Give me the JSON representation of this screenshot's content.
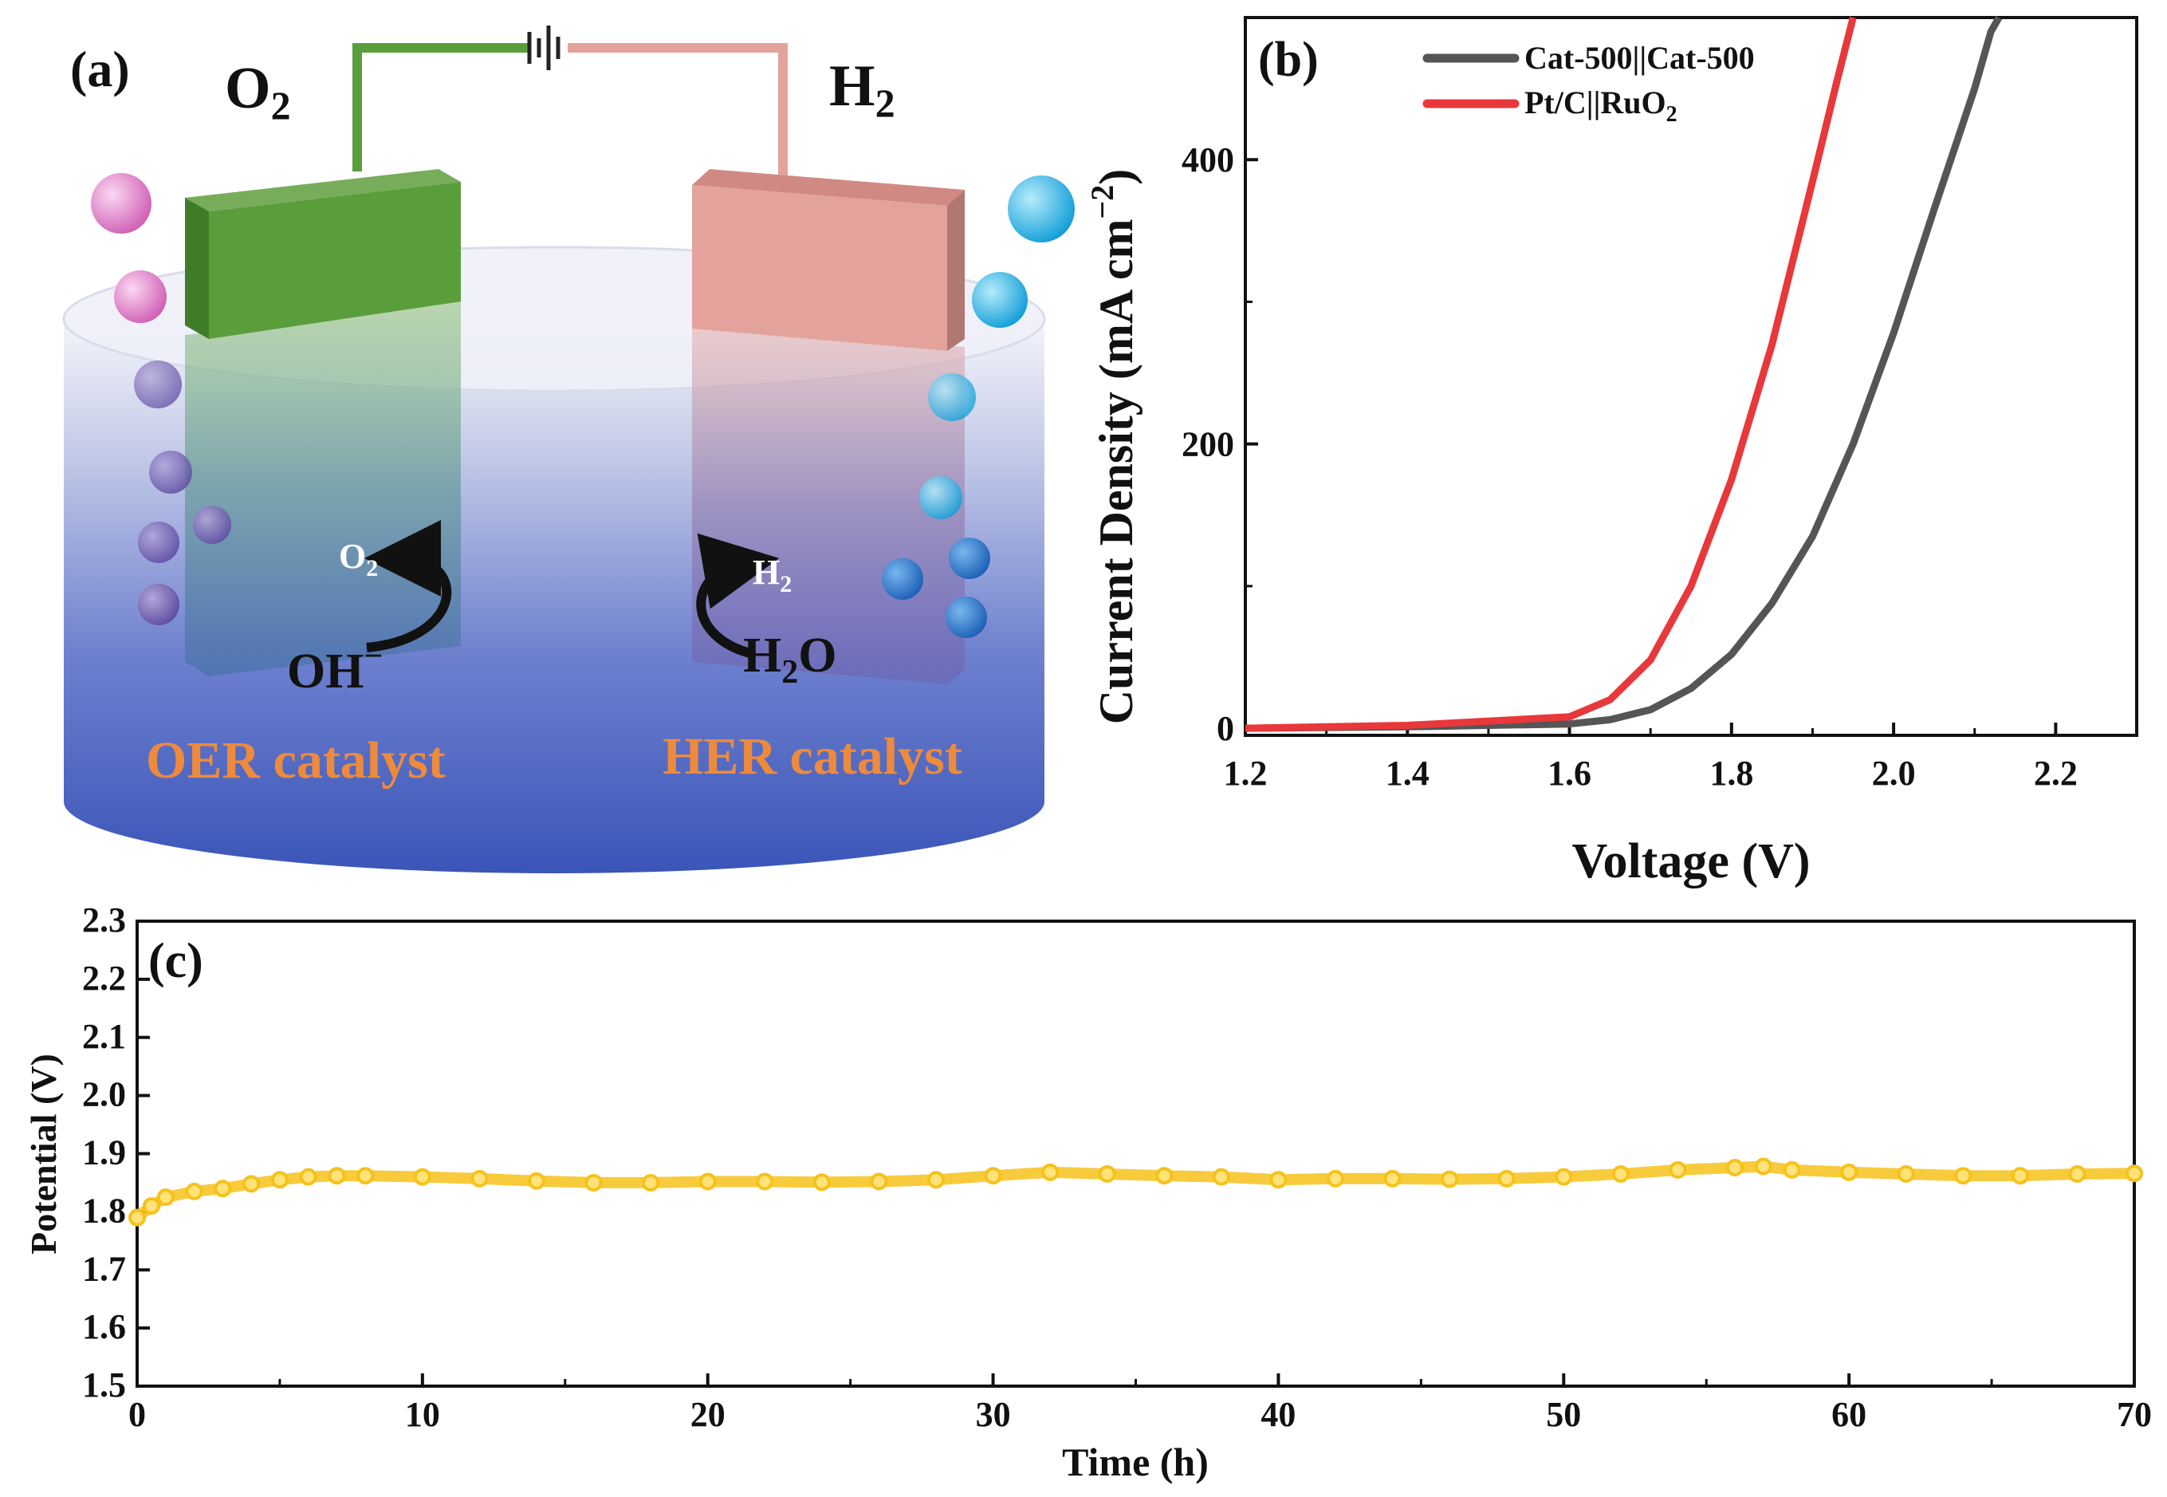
{
  "panel_a": {
    "label": "(a)",
    "o2_top": "O",
    "o2_top_sub": "2",
    "h2_top": "H",
    "h2_top_sub": "2",
    "o2_small": "O",
    "o2_small_sub": "2",
    "h2_small": "H",
    "h2_small_sub": "2",
    "oh": "OH",
    "oh_sup": "−",
    "h2o_h": "H",
    "h2o_sub": "2",
    "h2o_o": "O",
    "oer_label": "OER catalyst",
    "her_label": "HER catalyst",
    "colors": {
      "oer_electrode": "#5a9e3c",
      "her_electrode": "#e3a39c",
      "text_orange": "#ee8a3c",
      "o2_bubble": "#e27bc6",
      "h2_bubble": "#2fb3e6"
    }
  },
  "chart_data": [
    {
      "panel": "(b)",
      "type": "line",
      "xlabel": "Voltage (V)",
      "ylabel_main": "Current Density (mA cm",
      "ylabel_sup": "−2",
      "ylabel_close": ")",
      "xlim": [
        1.2,
        2.3
      ],
      "ylim": [
        -5,
        500
      ],
      "xticks": [
        1.2,
        1.4,
        1.6,
        1.8,
        2.0,
        2.2
      ],
      "xtick_labels": [
        "1.2",
        "1.4",
        "1.6",
        "1.8",
        "2.0",
        "2.2"
      ],
      "yticks": [
        0,
        200,
        400
      ],
      "ytick_labels": [
        "0",
        "200",
        "400"
      ],
      "legend_position": "top-left",
      "series": [
        {
          "name": "Cat-500||Cat-500",
          "color": "#555555",
          "x": [
            1.2,
            1.4,
            1.6,
            1.65,
            1.7,
            1.75,
            1.8,
            1.85,
            1.9,
            1.95,
            2.0,
            2.05,
            2.1,
            2.12,
            2.13
          ],
          "y": [
            0,
            1,
            3,
            6,
            13,
            28,
            52,
            88,
            135,
            200,
            278,
            365,
            450,
            490,
            500
          ]
        },
        {
          "name": "Pt/C||RuO",
          "name_sub": "2",
          "color": "#e8383b",
          "x": [
            1.2,
            1.4,
            1.6,
            1.65,
            1.7,
            1.75,
            1.8,
            1.85,
            1.9,
            1.93,
            1.95
          ],
          "y": [
            0,
            2,
            8,
            20,
            48,
            100,
            175,
            270,
            385,
            455,
            500
          ]
        }
      ]
    },
    {
      "panel": "(c)",
      "type": "scatter",
      "xlabel": "Time (h)",
      "ylabel": "Potential (V)",
      "xlim": [
        0,
        70
      ],
      "ylim": [
        1.5,
        2.3
      ],
      "xticks": [
        0,
        10,
        20,
        30,
        40,
        50,
        60,
        70
      ],
      "xtick_labels": [
        "0",
        "10",
        "20",
        "30",
        "40",
        "50",
        "60",
        "70"
      ],
      "yticks": [
        1.5,
        1.6,
        1.7,
        1.8,
        1.9,
        2.0,
        2.1,
        2.2,
        2.3
      ],
      "ytick_labels": [
        "1.5",
        "1.6",
        "1.7",
        "1.8",
        "1.9",
        "2.0",
        "2.1",
        "2.2",
        "2.3"
      ],
      "series": [
        {
          "name": "Potential",
          "color": "#f6c21a",
          "x": [
            0,
            0.5,
            1,
            2,
            3,
            4,
            5,
            6,
            7,
            8,
            10,
            12,
            14,
            16,
            18,
            20,
            22,
            24,
            26,
            28,
            30,
            32,
            34,
            36,
            38,
            40,
            42,
            44,
            46,
            48,
            50,
            52,
            54,
            56,
            57,
            58,
            60,
            62,
            64,
            66,
            68,
            70
          ],
          "y": [
            1.79,
            1.81,
            1.825,
            1.835,
            1.84,
            1.848,
            1.855,
            1.86,
            1.862,
            1.862,
            1.86,
            1.857,
            1.853,
            1.85,
            1.85,
            1.852,
            1.852,
            1.851,
            1.852,
            1.855,
            1.862,
            1.868,
            1.865,
            1.862,
            1.86,
            1.855,
            1.857,
            1.857,
            1.856,
            1.857,
            1.86,
            1.865,
            1.872,
            1.876,
            1.878,
            1.872,
            1.868,
            1.865,
            1.862,
            1.862,
            1.865,
            1.866
          ]
        }
      ]
    }
  ]
}
